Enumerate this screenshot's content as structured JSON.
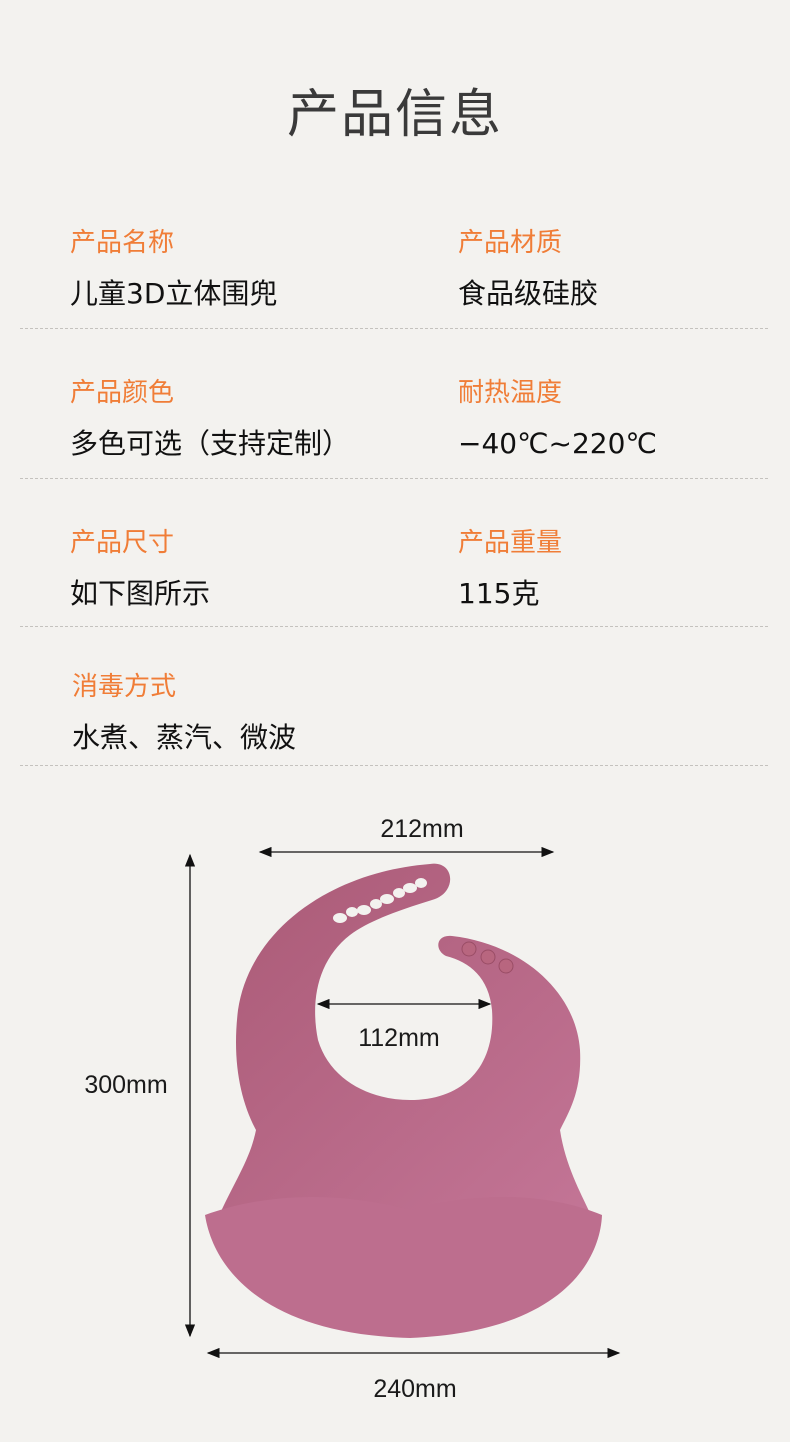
{
  "title": "产品信息",
  "specs": [
    {
      "label": "产品名称",
      "value": "儿童3D立体围兜"
    },
    {
      "label": "产品材质",
      "value": "食品级硅胶"
    },
    {
      "label": "产品颜色",
      "value": "多色可选（支持定制）"
    },
    {
      "label": "耐热温度",
      "value": "−40℃~220℃"
    },
    {
      "label": "产品尺寸",
      "value": "如下图所示"
    },
    {
      "label": "产品重量",
      "value": "115克"
    },
    {
      "label": "消毒方式",
      "value": "水煮、蒸汽、微波"
    }
  ],
  "dimensions": {
    "top_width": "212mm",
    "neck_width": "112mm",
    "height": "300mm",
    "bottom_width": "240mm"
  },
  "colors": {
    "label": "#f07d37",
    "bib": "#b5647f",
    "background": "#f3f2ef"
  }
}
